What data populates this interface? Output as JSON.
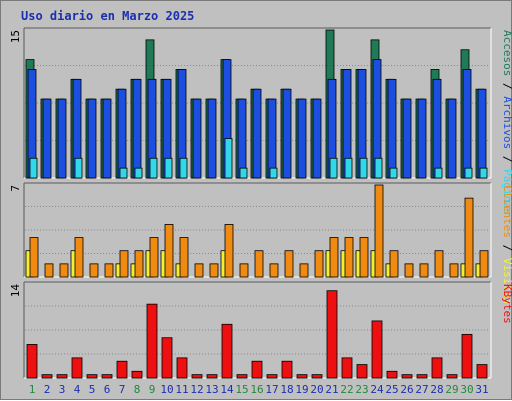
{
  "title": "Uso diario en Marzo 2025",
  "colors": {
    "accesos": "#1f7a56",
    "archivos": "#1c4fe0",
    "paginas": "#33d8e8",
    "clientes": "#f08a10",
    "visitas": "#f4f030",
    "kbytes": "#ee1010",
    "weekday_label": "#1a2fb0",
    "weekend_label": "#1f8a3a"
  },
  "chart_data": [
    {
      "type": "bar",
      "panel": "top",
      "ymax_label": "15",
      "ylim": [
        0,
        15
      ],
      "categories": [
        "1",
        "2",
        "3",
        "4",
        "5",
        "6",
        "7",
        "8",
        "9",
        "10",
        "11",
        "12",
        "13",
        "14",
        "15",
        "16",
        "17",
        "18",
        "19",
        "20",
        "21",
        "22",
        "23",
        "24",
        "25",
        "26",
        "27",
        "28",
        "29",
        "30",
        "31"
      ],
      "weekend_days": [
        1,
        8,
        9,
        15,
        16,
        22,
        23,
        29,
        30
      ],
      "series": [
        {
          "name": "Accesos",
          "color_key": "accesos",
          "values": [
            12,
            8,
            8,
            10,
            8,
            8,
            9,
            10,
            14,
            10,
            11,
            8,
            8,
            12,
            8,
            9,
            8,
            9,
            8,
            8,
            15,
            11,
            11,
            14,
            10,
            8,
            8,
            11,
            8,
            13,
            9
          ]
        },
        {
          "name": "Archivos",
          "color_key": "archivos",
          "values": [
            11,
            8,
            8,
            10,
            8,
            8,
            9,
            10,
            10,
            10,
            11,
            8,
            8,
            12,
            8,
            9,
            8,
            9,
            8,
            8,
            10,
            11,
            11,
            12,
            10,
            8,
            8,
            10,
            8,
            11,
            9
          ]
        },
        {
          "name": "Páginas",
          "color_key": "paginas",
          "values": [
            2,
            0,
            0,
            2,
            0,
            0,
            1,
            1,
            2,
            2,
            2,
            0,
            0,
            4,
            1,
            0,
            1,
            0,
            0,
            0,
            2,
            2,
            2,
            2,
            1,
            0,
            0,
            1,
            0,
            1,
            1
          ]
        }
      ],
      "legend": [
        {
          "text": "Accesos",
          "color_key": "accesos"
        },
        {
          "text": " / ",
          "color_key": ""
        },
        {
          "text": "Archivos",
          "color_key": "archivos"
        },
        {
          "text": " / ",
          "color_key": ""
        },
        {
          "text": "Páginas",
          "color_key": "paginas"
        }
      ]
    },
    {
      "type": "bar",
      "panel": "middle",
      "ymax_label": "7",
      "ylim": [
        0,
        7
      ],
      "categories": [
        "1",
        "2",
        "3",
        "4",
        "5",
        "6",
        "7",
        "8",
        "9",
        "10",
        "11",
        "12",
        "13",
        "14",
        "15",
        "16",
        "17",
        "18",
        "19",
        "20",
        "21",
        "22",
        "23",
        "24",
        "25",
        "26",
        "27",
        "28",
        "29",
        "30",
        "31"
      ],
      "series": [
        {
          "name": "Visitas",
          "color_key": "visitas",
          "values": [
            2,
            0,
            0,
            2,
            0,
            0,
            1,
            1,
            2,
            2,
            1,
            0,
            0,
            2,
            0,
            0,
            0,
            0,
            0,
            0,
            2,
            2,
            2,
            2,
            1,
            0,
            0,
            0,
            0,
            1,
            1
          ]
        },
        {
          "name": "Clientes",
          "color_key": "clientes",
          "values": [
            3,
            1,
            1,
            3,
            1,
            1,
            2,
            2,
            3,
            4,
            3,
            1,
            1,
            4,
            1,
            2,
            1,
            2,
            1,
            2,
            3,
            3,
            3,
            7,
            2,
            1,
            1,
            2,
            1,
            6,
            2
          ]
        }
      ],
      "legend": [
        {
          "text": "Clientes",
          "color_key": "clientes"
        },
        {
          "text": " / ",
          "color_key": ""
        },
        {
          "text": "Visitas",
          "color_key": "visitas"
        }
      ]
    },
    {
      "type": "bar",
      "panel": "bottom",
      "ymax_label": "14",
      "ylim": [
        0,
        14
      ],
      "categories": [
        "1",
        "2",
        "3",
        "4",
        "5",
        "6",
        "7",
        "8",
        "9",
        "10",
        "11",
        "12",
        "13",
        "14",
        "15",
        "16",
        "17",
        "18",
        "19",
        "20",
        "21",
        "22",
        "23",
        "24",
        "25",
        "26",
        "27",
        "28",
        "29",
        "30",
        "31"
      ],
      "series": [
        {
          "name": "KBytes",
          "color_key": "kbytes",
          "values": [
            5,
            0.5,
            0.5,
            3,
            0.5,
            0.5,
            2.5,
            1,
            11,
            6,
            3,
            0.5,
            0.5,
            8,
            0.5,
            2.5,
            0.5,
            2.5,
            0.5,
            0.5,
            13,
            3,
            2,
            8.5,
            1,
            0.5,
            0.5,
            3,
            0.5,
            6.5,
            2
          ]
        }
      ],
      "legend": [
        {
          "text": "KBytes",
          "color_key": "kbytes"
        }
      ]
    }
  ]
}
